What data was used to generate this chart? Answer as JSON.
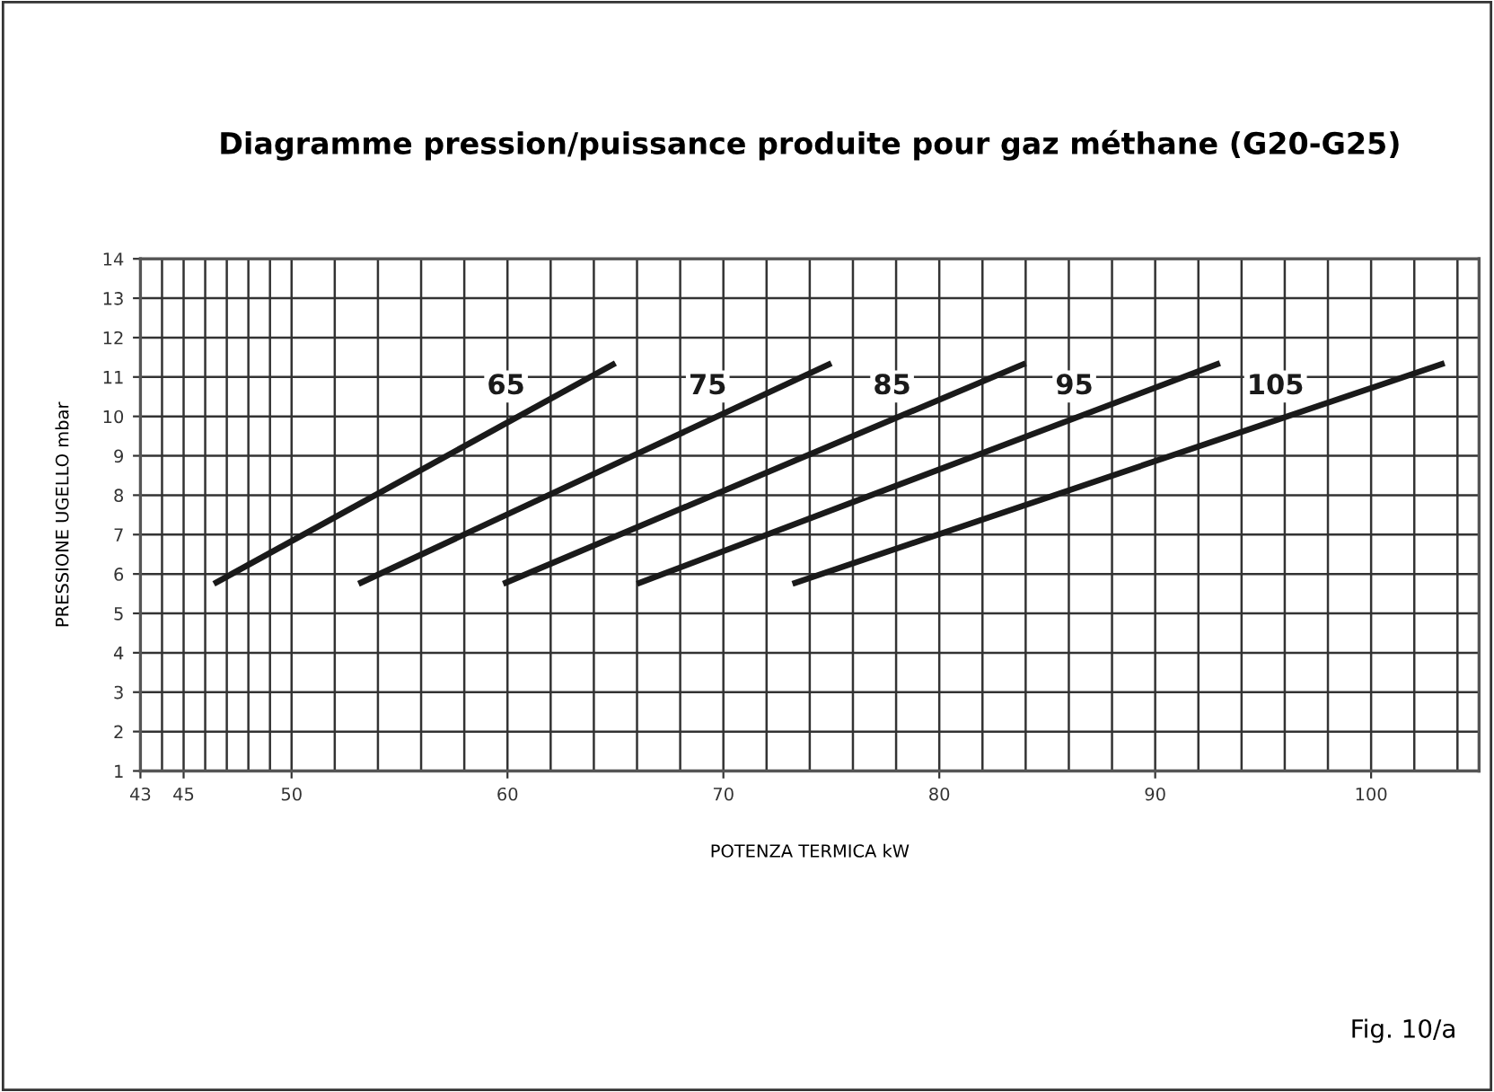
{
  "chart_data": {
    "type": "line",
    "title": "Diagramme pression/puissance produite pour gaz méthane (G20-G25)",
    "xlabel": "POTENZA TERMICA kW",
    "ylabel": "PRESSIONE UGELLO mbar",
    "annotations": [
      "Fig. 10/a"
    ],
    "series": [
      {
        "name": "65",
        "color": "#1a1a1a",
        "x": [
          46.4,
          65.0
        ],
        "values": [
          5.75,
          11.35
        ]
      },
      {
        "name": "75",
        "color": "#1a1a1a",
        "x": [
          53.1,
          75.0
        ],
        "values": [
          5.75,
          11.35
        ]
      },
      {
        "name": "85",
        "color": "#1a1a1a",
        "x": [
          59.8,
          84.0
        ],
        "values": [
          5.75,
          11.35
        ]
      },
      {
        "name": "95",
        "color": "#1a1a1a",
        "x": [
          66.0,
          93.0
        ],
        "values": [
          5.75,
          11.35
        ]
      },
      {
        "name": "105",
        "color": "#1a1a1a",
        "x": [
          73.2,
          103.4
        ],
        "values": [
          5.75,
          11.35
        ]
      }
    ],
    "xlim": [
      43,
      105
    ],
    "xticks": [
      43,
      45,
      50,
      60,
      70,
      80,
      90,
      100
    ],
    "ylim": [
      1,
      14
    ],
    "yticks": [
      1,
      2,
      3,
      4,
      5,
      6,
      7,
      8,
      9,
      10,
      11,
      12,
      13,
      14
    ],
    "grid": true,
    "legend": false,
    "marker": "none",
    "line_style": "solid"
  }
}
